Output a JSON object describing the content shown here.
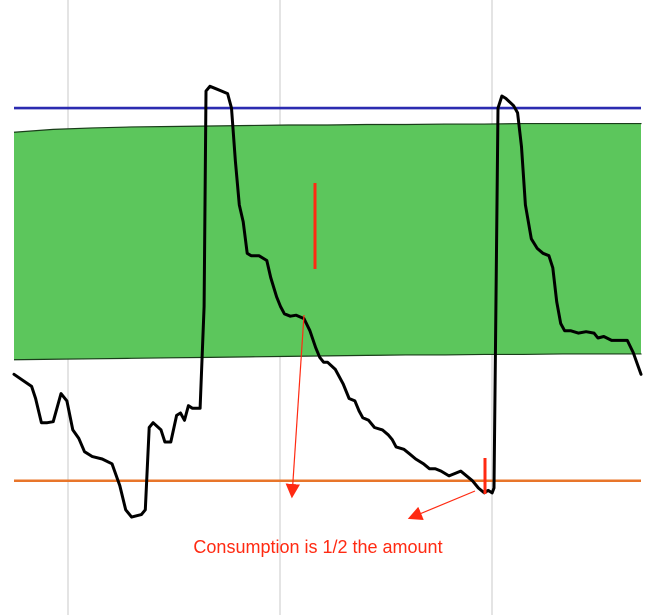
{
  "chart_data": {
    "type": "line",
    "title": "",
    "xlabel": "",
    "ylabel": "",
    "grid": "vertical lines only",
    "colors": {
      "series": "#000000",
      "band_fill": "#5cc65c",
      "band_edge": "#1a3d1a",
      "upper_line": "#2b2bb0",
      "lower_line": "#e8752a",
      "annotation": "#ff2a12",
      "grid": "#d9d9d9"
    },
    "reference_lines": [
      {
        "role": "upper",
        "y": 88
      },
      {
        "role": "lower",
        "y": 11
      }
    ],
    "band": {
      "x": [
        0,
        40,
        80,
        120,
        160,
        200,
        240,
        280,
        320,
        360,
        400,
        440,
        480,
        520,
        560,
        600,
        640,
        680
      ],
      "upper": [
        83,
        83.6,
        83.9,
        84.1,
        84.2,
        84.3,
        84.4,
        84.5,
        84.5,
        84.6,
        84.6,
        84.7,
        84.7,
        84.8,
        84.8,
        84.8,
        84.8,
        84.9
      ],
      "lower": [
        36,
        36.1,
        36.2,
        36.3,
        36.4,
        36.5,
        36.6,
        36.7,
        36.8,
        36.9,
        37,
        37,
        37.1,
        37.1,
        37.2,
        37.2,
        37.2,
        37.3
      ]
    },
    "series": [
      {
        "x": [
          0,
          18,
          22,
          28,
          34,
          40,
          48,
          54,
          60,
          66,
          72,
          80,
          90,
          100,
          108,
          114,
          120,
          126,
          130,
          134,
          138,
          142,
          150,
          154,
          160,
          166,
          170,
          174,
          178,
          182,
          190,
          194,
          196,
          200,
          206,
          212,
          218,
          222,
          226,
          230,
          234,
          238,
          242,
          250,
          258,
          262,
          268,
          272,
          276,
          282,
          288,
          296,
          302,
          308,
          312,
          316,
          320,
          328,
          336,
          342,
          348,
          352,
          356,
          362,
          368,
          376,
          382,
          386,
          390,
          398,
          404,
          410,
          418,
          424,
          430,
          436,
          444,
          450,
          456,
          462,
          468,
          474,
          480,
          484,
          488,
          490,
          494,
          498,
          502,
          510,
          514,
          518,
          522,
          528,
          534,
          540,
          546,
          550,
          554,
          558,
          562,
          568,
          576,
          584,
          592,
          596,
          602,
          610,
          618,
          626,
          632,
          640
        ],
        "y": [
          33,
          30.5,
          28,
          23,
          23,
          23.2,
          29,
          27.5,
          21.5,
          19.8,
          17,
          16,
          15.5,
          14.5,
          10,
          5,
          3.5,
          3.8,
          4,
          5,
          22,
          23,
          21.5,
          19,
          19,
          24.5,
          25,
          23.5,
          26.5,
          26,
          26,
          47,
          91.5,
          92.5,
          92,
          91.5,
          91,
          88,
          77,
          68,
          64.5,
          58,
          57.5,
          57.5,
          56.5,
          53,
          49,
          47,
          45.5,
          45,
          45.2,
          44.5,
          42,
          38.5,
          36.5,
          35.5,
          35.5,
          34,
          31,
          28,
          27.5,
          25.5,
          24,
          23.5,
          22,
          21.5,
          20.5,
          19.5,
          18,
          17.5,
          16.5,
          15.5,
          14.5,
          13.5,
          13.5,
          13,
          12,
          12.5,
          13,
          12,
          11,
          9.5,
          8.5,
          9,
          8.5,
          9.5,
          88,
          90.5,
          90,
          88.5,
          87,
          80,
          68,
          61,
          59,
          58,
          57.5,
          55,
          48,
          43.5,
          42,
          42,
          41.5,
          41.8,
          41.5,
          40.5,
          40.8,
          40,
          40,
          40,
          37.5,
          33
        ]
      }
    ],
    "annotations": [
      {
        "text": "Consumption is 1/2 the amount"
      }
    ]
  }
}
